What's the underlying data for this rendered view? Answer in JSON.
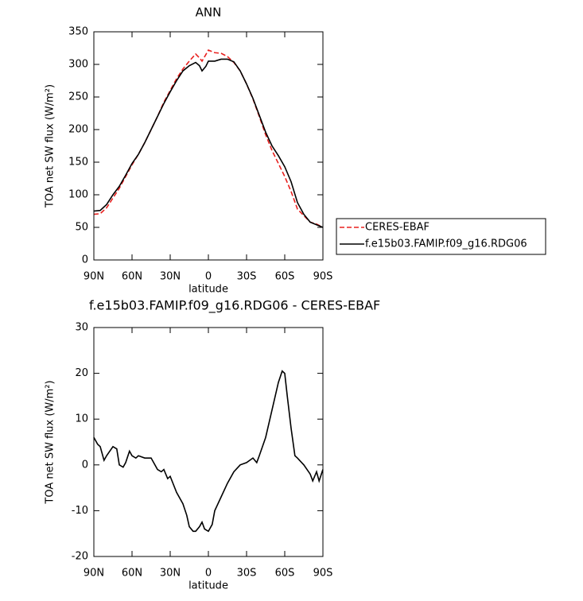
{
  "chart_data": [
    {
      "type": "line",
      "title": "ANN",
      "xlabel": "latitude",
      "ylabel": "TOA net SW flux (W/m²)",
      "x": [
        90,
        85,
        80,
        75,
        70,
        65,
        60,
        55,
        50,
        45,
        40,
        35,
        30,
        25,
        20,
        15,
        10,
        7,
        5,
        2,
        0,
        -5,
        -10,
        -15,
        -20,
        -25,
        -30,
        -35,
        -40,
        -45,
        -50,
        -55,
        -60,
        -65,
        -70,
        -75,
        -80,
        -85,
        -90
      ],
      "xlim": [
        90,
        -90
      ],
      "xticks": [
        {
          "value": 90,
          "label": "90N"
        },
        {
          "value": 60,
          "label": "60N"
        },
        {
          "value": 30,
          "label": "30N"
        },
        0,
        {
          "value": -30,
          "label": "30S"
        },
        {
          "value": -60,
          "label": "60S"
        },
        {
          "value": -90,
          "label": "90S"
        }
      ],
      "ylim": [
        0,
        350
      ],
      "yticks": [
        0,
        50,
        100,
        150,
        200,
        250,
        300,
        350
      ],
      "legend": "right",
      "series": [
        {
          "name": "CERES-EBAF",
          "color": "#e8201e",
          "linestyle": "dashed",
          "values": [
            70,
            71,
            80,
            95,
            110,
            128,
            146,
            162,
            180,
            200,
            220,
            242,
            260,
            278,
            293,
            305,
            316,
            310,
            305,
            315,
            322,
            318,
            317,
            312,
            303,
            290,
            270,
            247,
            220,
            192,
            168,
            148,
            128,
            105,
            78,
            68,
            58,
            55,
            50
          ]
        },
        {
          "name": "f.e15b03.FAMIP.f09_g16.RDG06",
          "color": "#000000",
          "linestyle": "solid",
          "values": [
            75,
            76,
            85,
            100,
            113,
            130,
            148,
            162,
            180,
            200,
            220,
            240,
            258,
            275,
            290,
            298,
            303,
            298,
            290,
            297,
            305,
            305,
            308,
            308,
            304,
            290,
            270,
            248,
            222,
            196,
            175,
            160,
            143,
            120,
            88,
            70,
            58,
            54,
            50
          ]
        }
      ]
    },
    {
      "type": "line",
      "title": "f.e15b03.FAMIP.f09_g16.RDG06 - CERES-EBAF",
      "xlabel": "latitude",
      "ylabel": "TOA net SW flux (W/m²)",
      "x": [
        90,
        87,
        85,
        82,
        80,
        75,
        72,
        70,
        67,
        65,
        62,
        60,
        57,
        55,
        50,
        45,
        40,
        37,
        35,
        32,
        30,
        25,
        20,
        17,
        15,
        12,
        10,
        7,
        5,
        3,
        0,
        -3,
        -5,
        -10,
        -15,
        -20,
        -25,
        -30,
        -35,
        -38,
        -40,
        -45,
        -50,
        -55,
        -58,
        -60,
        -62,
        -65,
        -68,
        -70,
        -75,
        -80,
        -82,
        -85,
        -87,
        -90
      ],
      "xlim": [
        90,
        -90
      ],
      "xticks": [
        {
          "value": 90,
          "label": "90N"
        },
        {
          "value": 60,
          "label": "60N"
        },
        {
          "value": 30,
          "label": "30N"
        },
        0,
        {
          "value": -30,
          "label": "30S"
        },
        {
          "value": -60,
          "label": "60S"
        },
        {
          "value": -90,
          "label": "90S"
        }
      ],
      "ylim": [
        -20,
        30
      ],
      "yticks": [
        -20,
        -10,
        0,
        10,
        20,
        30
      ],
      "series": [
        {
          "color": "#000000",
          "linestyle": "solid",
          "values": [
            6,
            4.5,
            4,
            1,
            2,
            4,
            3.5,
            0,
            -0.5,
            0.5,
            3,
            2,
            1.5,
            2,
            1.5,
            1.5,
            -1,
            -1.5,
            -1,
            -3,
            -2.5,
            -6,
            -8.5,
            -11,
            -13.5,
            -14.5,
            -14.5,
            -13.5,
            -12.5,
            -14,
            -14.5,
            -13,
            -10,
            -7,
            -4,
            -1.5,
            0,
            0.5,
            1.5,
            0.5,
            2,
            6,
            12,
            18,
            20.5,
            20,
            15,
            8,
            2,
            1.5,
            0,
            -2,
            -3.5,
            -1.5,
            -3.5,
            -1
          ]
        }
      ]
    }
  ]
}
